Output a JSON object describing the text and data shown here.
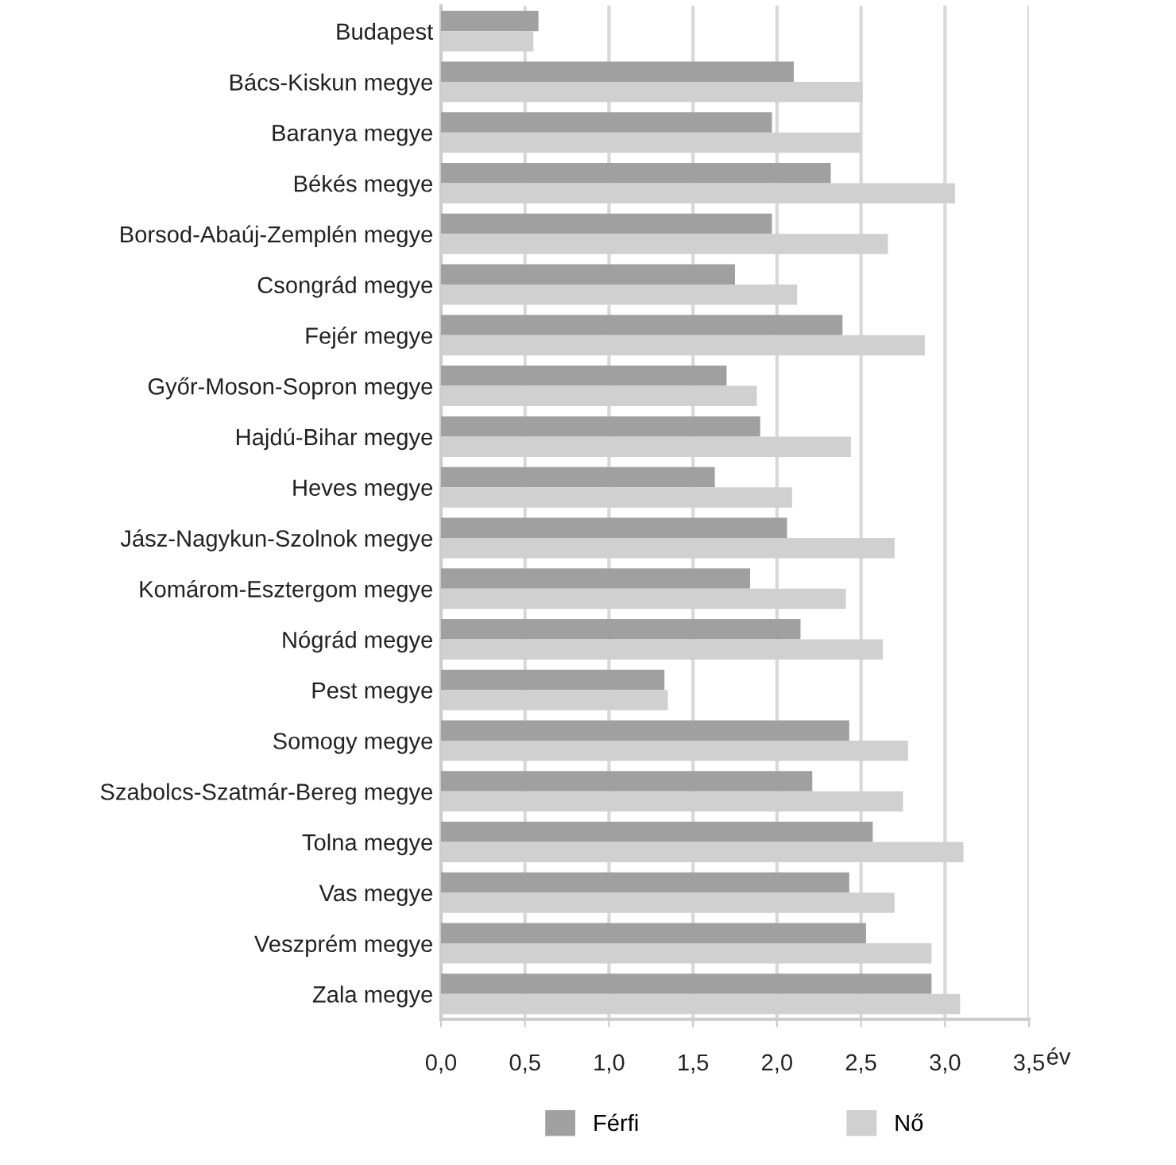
{
  "chart_data": {
    "type": "bar",
    "orientation": "horizontal",
    "xlabel": "év",
    "categories": [
      "Budapest",
      "Bács-Kiskun megye",
      "Baranya megye",
      "Békés megye",
      "Borsod-Abaúj-Zemplén megye",
      "Csongrád megye",
      "Fejér megye",
      "Győr-Moson-Sopron megye",
      "Hajdú-Bihar megye",
      "Heves megye",
      "Jász-Nagykun-Szolnok megye",
      "Komárom-Esztergom megye",
      "Nógrád megye",
      "Pest megye",
      "Somogy megye",
      "Szabolcs-Szatmár-Bereg megye",
      "Tolna megye",
      "Vas megye",
      "Veszprém megye",
      "Zala megye"
    ],
    "series": [
      {
        "name": "Férfi",
        "color": "#a0a0a0",
        "values": [
          0.58,
          2.1,
          1.97,
          2.32,
          1.97,
          1.75,
          2.39,
          1.7,
          1.9,
          1.63,
          2.06,
          1.84,
          2.14,
          1.33,
          2.43,
          2.21,
          2.57,
          2.43,
          2.53,
          2.92
        ]
      },
      {
        "name": "Nő",
        "color": "#d0d0d0",
        "values": [
          0.55,
          2.51,
          2.5,
          3.06,
          2.66,
          2.12,
          2.88,
          1.88,
          2.44,
          2.09,
          2.7,
          2.41,
          2.63,
          1.35,
          2.78,
          2.75,
          3.11,
          2.7,
          2.92,
          3.09
        ]
      }
    ],
    "xlim": [
      0,
      3.5
    ],
    "xticks": [
      {
        "value": 0,
        "label": "0,0"
      },
      {
        "value": 0.5,
        "label": "0,5"
      },
      {
        "value": 1,
        "label": "1,0"
      },
      {
        "value": 1.5,
        "label": "1,5"
      },
      {
        "value": 2,
        "label": "2,0"
      },
      {
        "value": 2.5,
        "label": "2,5"
      },
      {
        "value": 3,
        "label": "3,0"
      },
      {
        "value": 3.5,
        "label": "3,5"
      }
    ],
    "grid": "x",
    "legend": "bottom"
  }
}
